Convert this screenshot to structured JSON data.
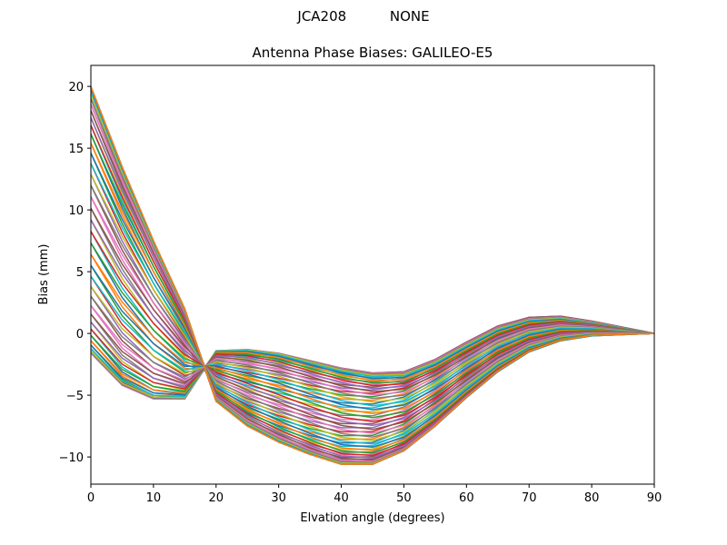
{
  "suptitle": "JCA208          NONE",
  "chart_data": {
    "type": "line",
    "title": "Antenna Phase Biases: GALILEO-E5",
    "suptitle": "JCA208          NONE",
    "xlabel": "Elvation angle (degrees)",
    "ylabel": "Bias (mm)",
    "xlim": [
      0,
      90
    ],
    "ylim": [
      -12.2,
      21.7
    ],
    "xticks": [
      0,
      10,
      20,
      30,
      40,
      50,
      60,
      70,
      80,
      90
    ],
    "yticks": [
      -10,
      -5,
      0,
      5,
      10,
      15,
      20
    ],
    "ytick_labels": [
      "−10",
      "−5",
      "0",
      "5",
      "10",
      "15",
      "20"
    ],
    "grid": false,
    "legend": null,
    "x": [
      0,
      5,
      10,
      15,
      20,
      25,
      30,
      35,
      40,
      45,
      50,
      55,
      60,
      65,
      70,
      75,
      80,
      85,
      90
    ],
    "series_count": 72,
    "series_note": "One curve per azimuth (0-355 deg, step 5); values vary sinusoidally between envelopes",
    "envelope_upper": [
      20.0,
      13.5,
      7.5,
      2.0,
      -1.4,
      -1.3,
      -1.6,
      -2.2,
      -2.8,
      -3.2,
      -3.1,
      -2.1,
      -0.7,
      0.6,
      1.3,
      1.4,
      1.0,
      0.5,
      0.0
    ],
    "envelope_lower": [
      -1.6,
      -4.2,
      -5.3,
      -5.3,
      -5.5,
      -7.5,
      -8.8,
      -9.8,
      -10.6,
      -10.6,
      -9.5,
      -7.5,
      -5.2,
      -3.1,
      -1.5,
      -0.6,
      -0.2,
      -0.1,
      0.0
    ],
    "colors": [
      "#1f77b4",
      "#ff7f0e",
      "#2ca02c",
      "#d62728",
      "#9467bd",
      "#8c564b",
      "#e377c2",
      "#7f7f7f",
      "#bcbd22",
      "#17becf"
    ]
  }
}
